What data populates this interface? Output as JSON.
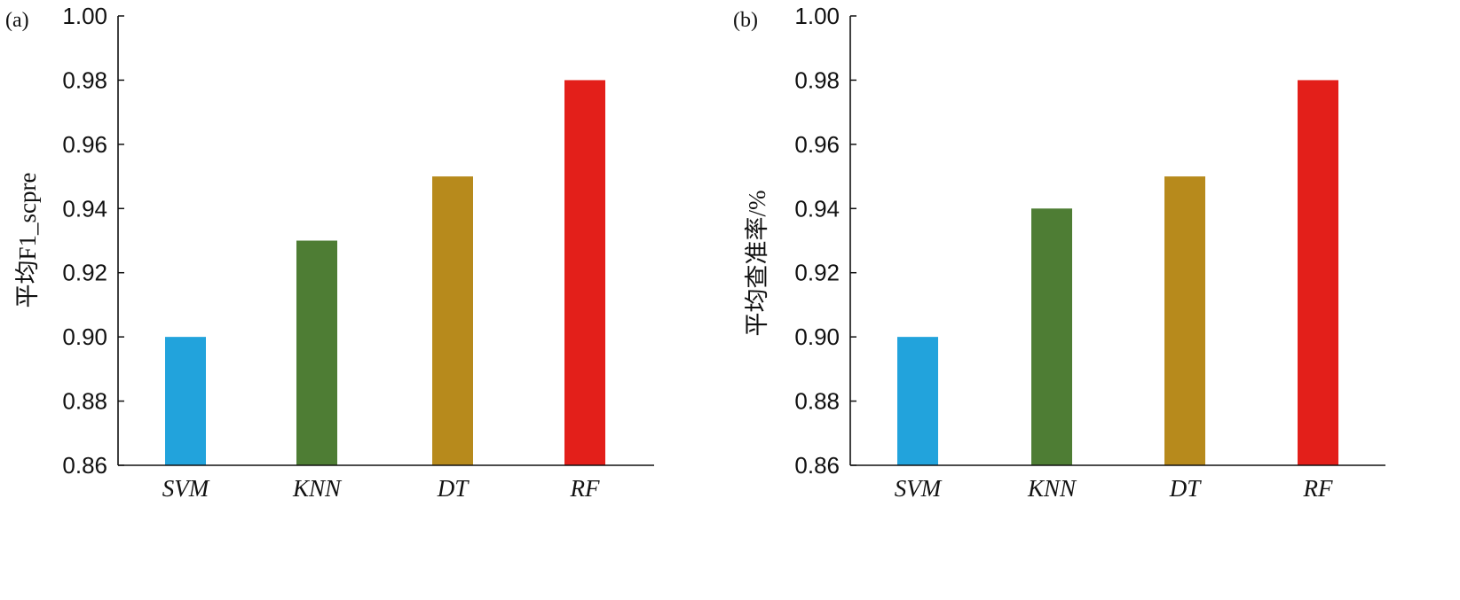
{
  "chart_data": [
    {
      "type": "bar",
      "panel_label": "(a)",
      "categories": [
        "SVM",
        "KNN",
        "DT",
        "RF"
      ],
      "values": [
        0.9,
        0.93,
        0.95,
        0.98
      ],
      "colors": [
        "#22a3dc",
        "#4e7d34",
        "#b78a1c",
        "#e31f1a"
      ],
      "ylabel": "平均F1_scpre",
      "ylim": [
        0.86,
        1.0
      ],
      "yticks": [
        "0.86",
        "0.88",
        "0.90",
        "0.92",
        "0.94",
        "0.96",
        "0.98",
        "1.00"
      ],
      "grid": false
    },
    {
      "type": "bar",
      "panel_label": "(b)",
      "categories": [
        "SVM",
        "KNN",
        "DT",
        "RF"
      ],
      "values": [
        0.9,
        0.94,
        0.95,
        0.98
      ],
      "colors": [
        "#22a3dc",
        "#4e7d34",
        "#b78a1c",
        "#e31f1a"
      ],
      "ylabel": "平均查准率/%",
      "ylim": [
        0.86,
        1.0
      ],
      "yticks": [
        "0.86",
        "0.88",
        "0.90",
        "0.92",
        "0.94",
        "0.96",
        "0.98",
        "1.00"
      ],
      "grid": false
    }
  ]
}
